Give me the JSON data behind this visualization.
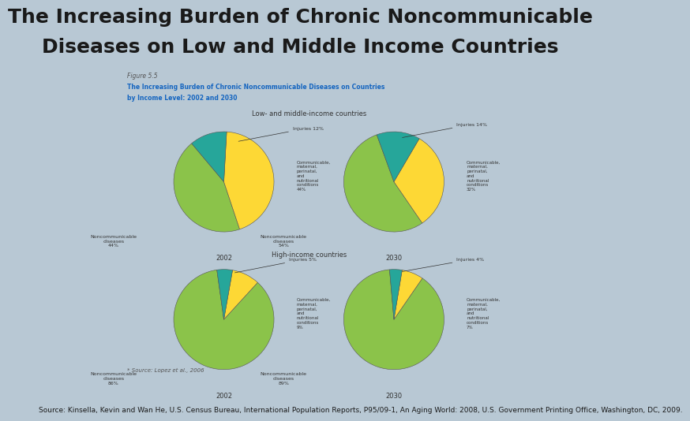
{
  "title_line1": "The Increasing Burden of Chronic Noncommunicable",
  "title_line2": "Diseases on Low and Middle Income Countries",
  "title_fontsize": 18,
  "title_color": "#1a1a1a",
  "background_color": "#b8c8d4",
  "panel_bg": "#ffffff",
  "panel_border": "#cccccc",
  "source_text": "Source: Kinsella, Kevin and Wan He, U.S. Census Bureau, International Population Reports, P95/09-1, An Aging World: 2008, U.S. Government Printing Office, Washington, DC, 2009.",
  "source_fontsize": 6.5,
  "inner_title1": "Figure 5.5",
  "inner_title2": "The Increasing Burden of Chronic Noncommunicable Diseases on Countries",
  "inner_title3": "by Income Level: 2002 and 2030",
  "section1_title": "Low- and middle-income countries",
  "section2_title": "High-income countries",
  "footnote": "Source: Lopez et al., 2006",
  "colors": {
    "noncommunicable": "#8bc34a",
    "communicable": "#fdd835",
    "injuries": "#26a69a"
  },
  "label_color": "#4472c4",
  "label_color2": "#333333",
  "lmic_2002": {
    "year": "2002",
    "noncommunicable": 44,
    "communicable": 44,
    "injuries": 12,
    "startangle": 130
  },
  "lmic_2030": {
    "year": "2030",
    "noncommunicable": 54,
    "communicable": 32,
    "injuries": 14,
    "startangle": 110
  },
  "hic_2002": {
    "year": "2002",
    "noncommunicable": 86,
    "communicable": 9,
    "injuries": 5,
    "startangle": 98
  },
  "hic_2030": {
    "year": "2030",
    "noncommunicable": 89,
    "communicable": 7,
    "injuries": 4,
    "startangle": 95
  }
}
